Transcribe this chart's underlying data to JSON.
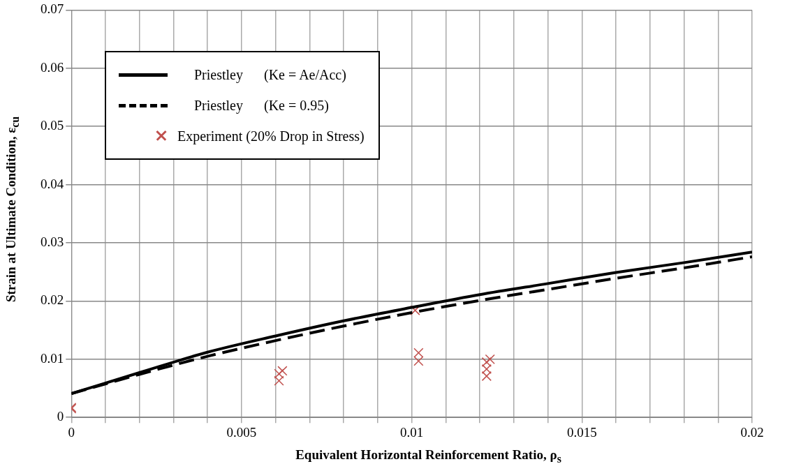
{
  "chart_data": {
    "type": "line",
    "xlabel": "Equivalent Horizontal Reinforcement Ratio, ρ$_{s}$",
    "ylabel": "Strain at Ultimate Condition, ε$_{cu}$",
    "xlim": [
      0,
      0.02
    ],
    "ylim": [
      0,
      0.07
    ],
    "xticks": [
      0,
      {
        "value": 0.001,
        "label": null
      },
      {
        "value": 0.002,
        "label": null
      },
      {
        "value": 0.003,
        "label": null
      },
      {
        "value": 0.004,
        "label": null
      },
      0.005,
      {
        "value": 0.006,
        "label": null
      },
      {
        "value": 0.007,
        "label": null
      },
      {
        "value": 0.008,
        "label": null
      },
      {
        "value": 0.009,
        "label": null
      },
      0.01,
      {
        "value": 0.011,
        "label": null
      },
      {
        "value": 0.012,
        "label": null
      },
      {
        "value": 0.013,
        "label": null
      },
      {
        "value": 0.014,
        "label": null
      },
      0.015,
      {
        "value": 0.016,
        "label": null
      },
      {
        "value": 0.017,
        "label": null
      },
      {
        "value": 0.018,
        "label": null
      },
      {
        "value": 0.019,
        "label": null
      },
      0.02
    ],
    "yticks": [
      0,
      0.01,
      0.02,
      0.03,
      0.04,
      0.05,
      0.06,
      0.07
    ],
    "grid": true,
    "legend": "top left",
    "series": [
      {
        "name": "Priestley      (Ke = Ae/Acc)",
        "color": "#000000",
        "line_style": "solid",
        "marker": "none",
        "x": [
          0,
          0.002,
          0.004,
          0.006,
          0.008,
          0.01,
          0.012,
          0.014,
          0.016,
          0.018,
          0.02
        ],
        "values": [
          0.0041,
          0.0077,
          0.0112,
          0.014,
          0.0166,
          0.0189,
          0.0211,
          0.023,
          0.0249,
          0.0266,
          0.0284
        ]
      },
      {
        "name": "Priestley      (Ke = 0.95)",
        "color": "#000000",
        "line_style": "dashed",
        "marker": "none",
        "x": [
          0,
          0.002,
          0.004,
          0.006,
          0.008,
          0.01,
          0.012,
          0.014,
          0.016,
          0.018,
          0.02
        ],
        "values": [
          0.0041,
          0.0074,
          0.0105,
          0.0132,
          0.0157,
          0.018,
          0.0201,
          0.022,
          0.0239,
          0.0257,
          0.0276
        ]
      },
      {
        "name": "Experiment (20% Drop in Stress)",
        "type": "scatter",
        "color": "#c0504d",
        "marker": "cross",
        "x": [
          0,
          0,
          0.0061,
          0.0061,
          0.0062,
          0.0101,
          0.0102,
          0.0102,
          0.0122,
          0.0122,
          0.0122,
          0.0123
        ],
        "values": [
          0.0015,
          0.0017,
          0.0063,
          0.0075,
          0.008,
          0.0184,
          0.0111,
          0.0097,
          0.0071,
          0.0083,
          0.0095,
          0.01
        ]
      }
    ]
  }
}
